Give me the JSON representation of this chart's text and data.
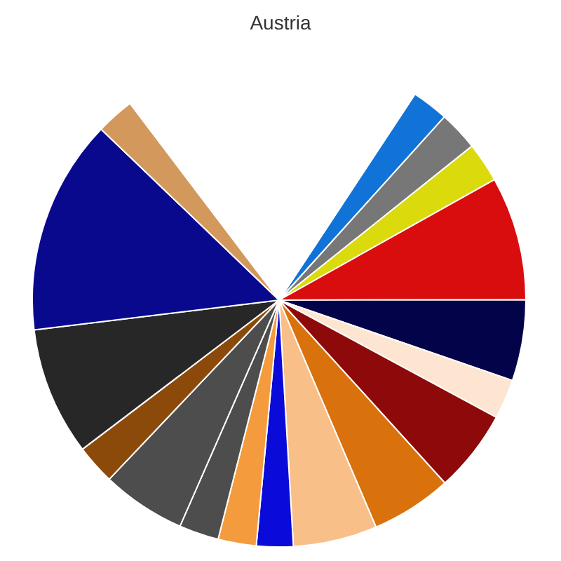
{
  "chart_data": {
    "type": "pie",
    "title": "Austria",
    "categories": [
      null,
      null,
      null,
      null,
      null,
      null,
      null,
      null,
      null,
      null,
      null,
      null,
      null,
      null,
      null,
      null,
      null,
      null
    ],
    "values": [
      2.4,
      2.6,
      2.6,
      8.1,
      5.3,
      2.6,
      5.4,
      5.3,
      5.5,
      2.4,
      2.5,
      2.6,
      5.5,
      2.6,
      8.4,
      14.1,
      2.5,
      19.6
    ],
    "colors": [
      "#1173d8",
      "#777777",
      "#dada0c",
      "#d90d0d",
      "#03034a",
      "#fde5d1",
      "#8e0a0a",
      "#d9720d",
      "#f8bf88",
      "#0b0bd9",
      "#f49b3d",
      "#4d4d4d",
      "#4d4d4d",
      "#8c4a0a",
      "#272727",
      "#09098e",
      "#d3995c",
      "#ffffff"
    ]
  }
}
